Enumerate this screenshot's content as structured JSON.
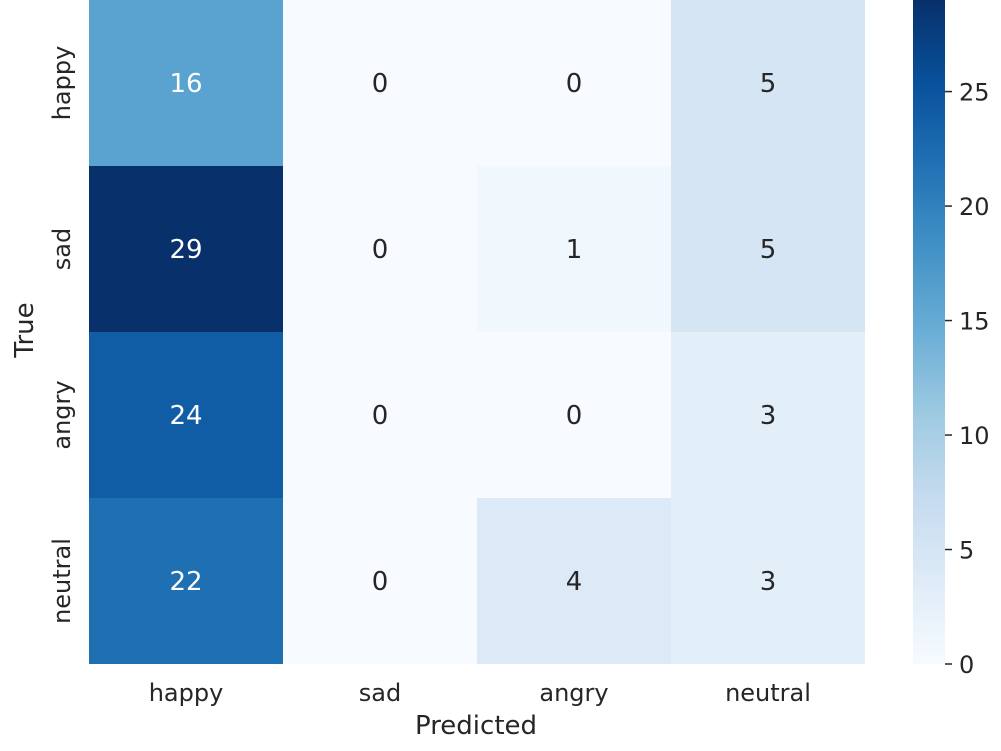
{
  "chart_data": {
    "type": "heatmap",
    "title": "",
    "xlabel": "Predicted",
    "ylabel": "True",
    "x_categories": [
      "happy",
      "sad",
      "angry",
      "neutral"
    ],
    "y_categories": [
      "happy",
      "sad",
      "angry",
      "neutral"
    ],
    "values": [
      [
        16,
        0,
        0,
        5
      ],
      [
        29,
        0,
        1,
        5
      ],
      [
        24,
        0,
        0,
        3
      ],
      [
        22,
        0,
        4,
        3
      ]
    ],
    "colormap": "Blues",
    "colors": {
      "low": "#f7fbff",
      "high": "#08306b"
    },
    "colorbar": {
      "min": 0,
      "max": 29,
      "ticks": [
        0,
        5,
        10,
        15,
        20,
        25
      ]
    },
    "annotations": true
  }
}
